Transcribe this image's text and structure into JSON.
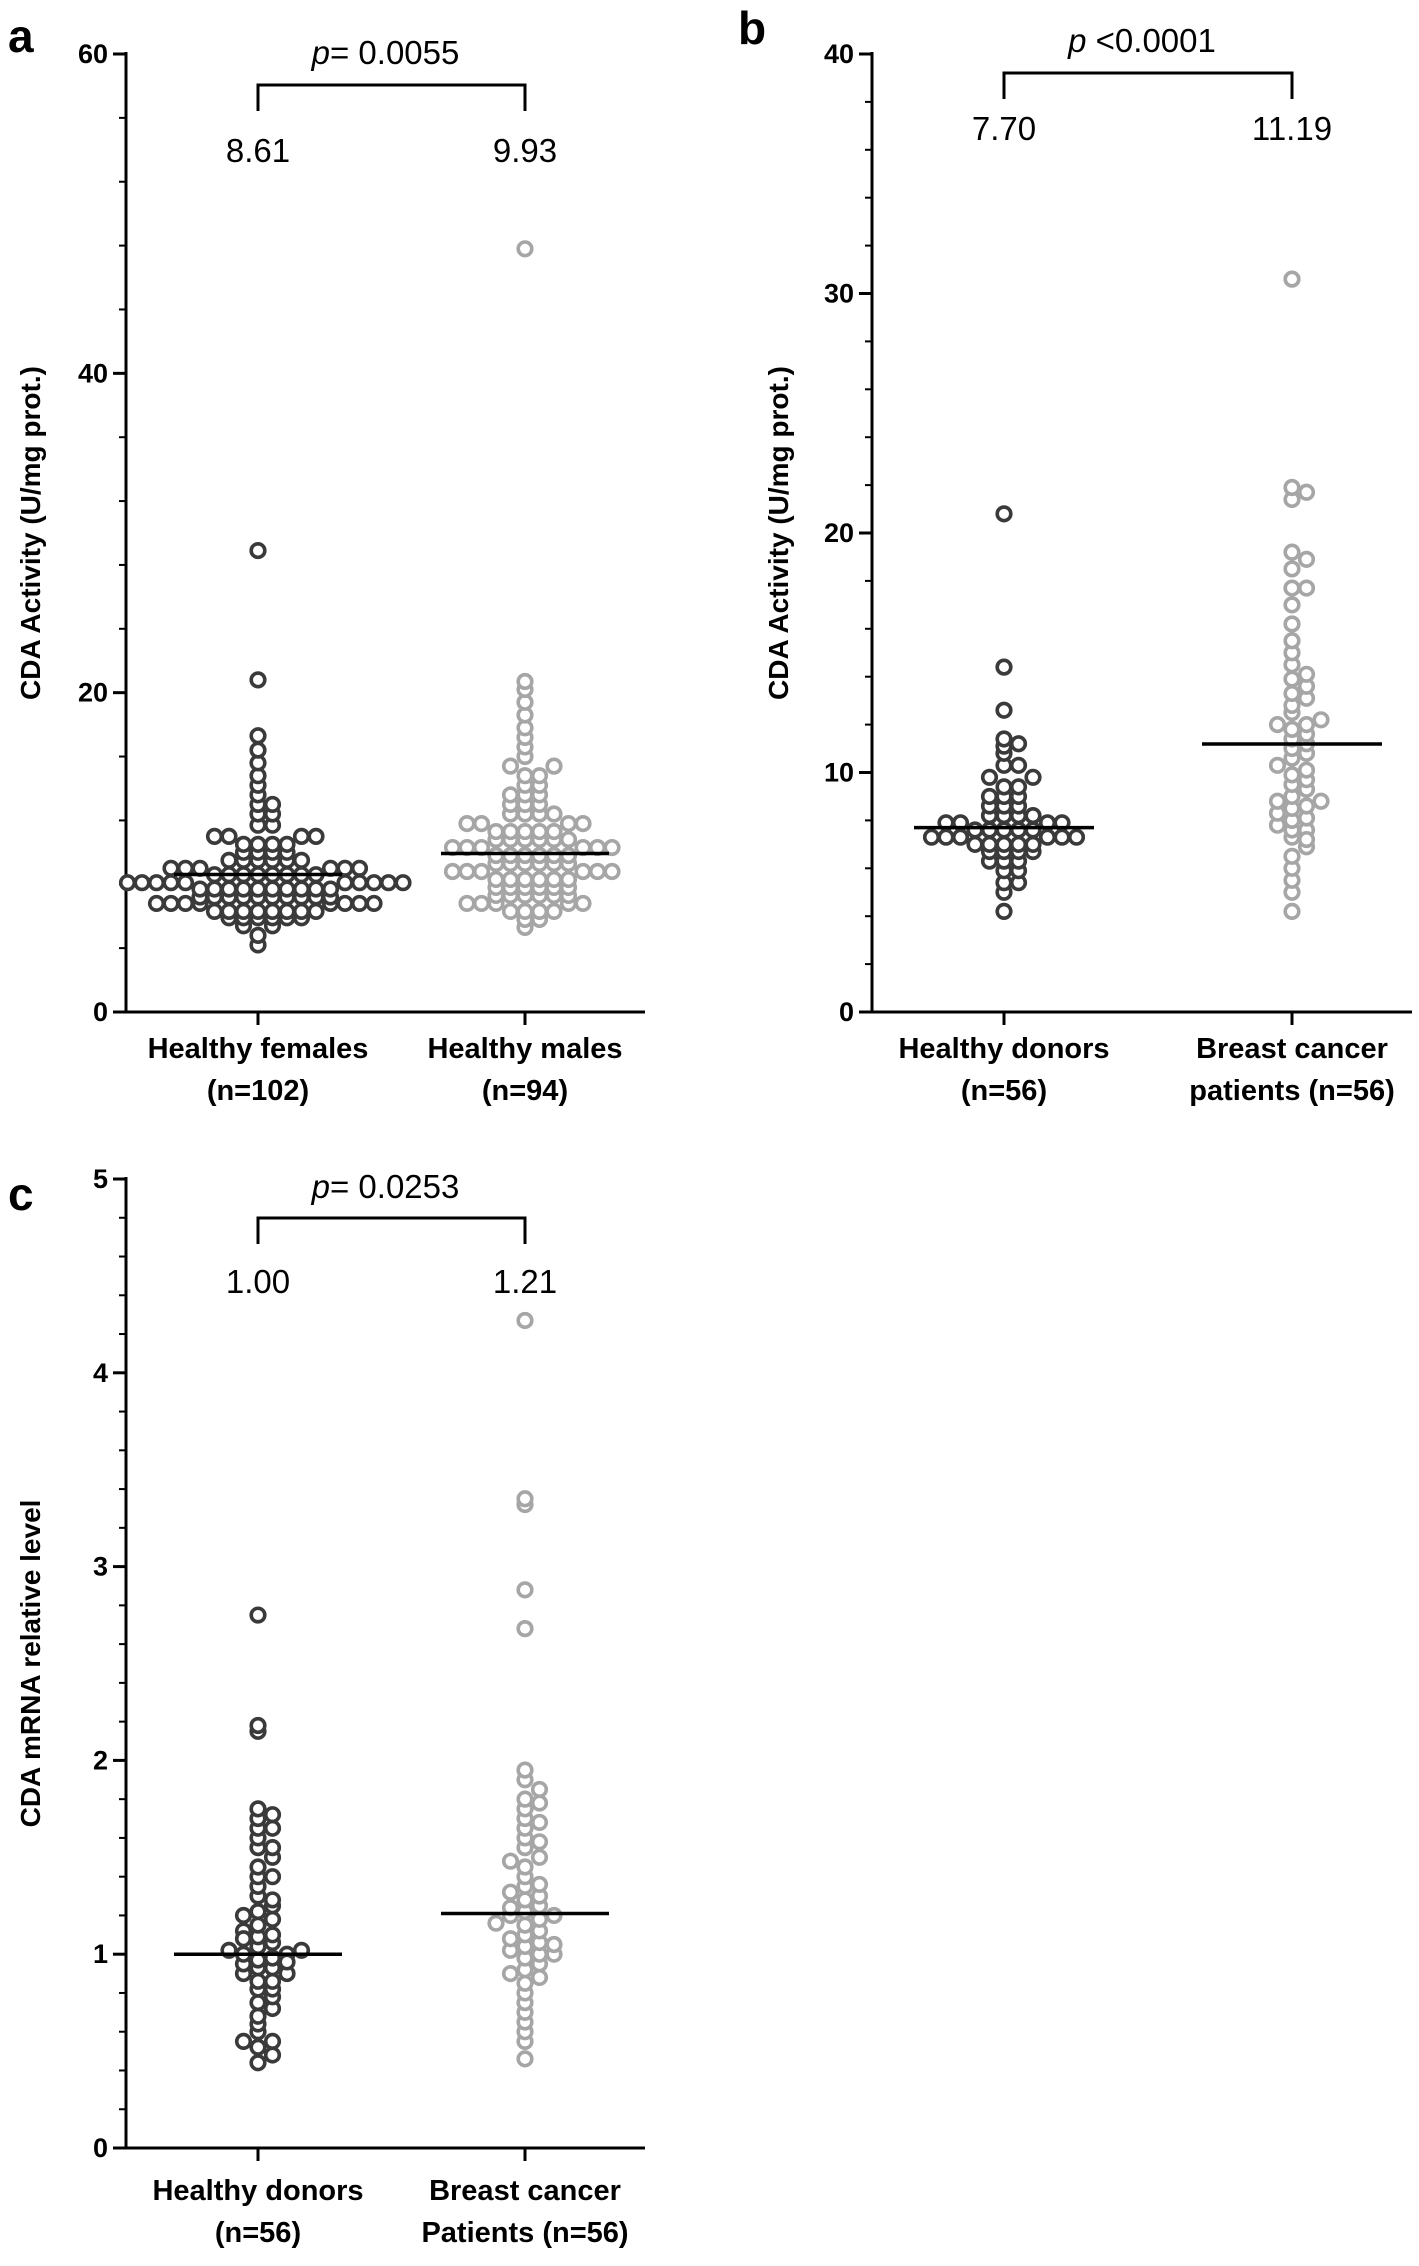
{
  "chart_data": [
    {
      "type": "scatter",
      "panel": "a",
      "ylabel": "CDA Activity (U/mg prot.)",
      "ylim": [
        0,
        60
      ],
      "yticks": [
        0,
        20,
        40,
        60
      ],
      "categories": [
        "Healthy females",
        "Healthy males"
      ],
      "category_n": [
        "(n=102)",
        "(n=94)"
      ],
      "median_labels": [
        "8.61",
        "9.93"
      ],
      "medians": [
        8.61,
        9.93
      ],
      "p_prefix": "p",
      "p_text": "= 0.0055",
      "colors": [
        "#3a3a3a",
        "#a6a6a6"
      ],
      "series": [
        {
          "name": "Healthy females",
          "values": [
            4.2,
            4.8,
            5.4,
            5.4,
            5.9,
            5.9,
            5.9,
            5.9,
            5.9,
            5.9,
            6.3,
            6.3,
            6.3,
            6.3,
            6.3,
            6.3,
            6.3,
            6.3,
            6.8,
            6.8,
            6.8,
            6.8,
            6.8,
            6.8,
            6.8,
            6.8,
            7.2,
            7.2,
            7.2,
            7.2,
            7.2,
            7.2,
            7.2,
            7.2,
            7.2,
            7.2,
            7.7,
            7.7,
            7.7,
            7.7,
            7.7,
            7.7,
            7.7,
            7.7,
            7.7,
            7.7,
            8.1,
            8.1,
            8.1,
            8.1,
            8.1,
            8.1,
            8.1,
            8.1,
            8.1,
            8.1,
            8.6,
            8.6,
            8.6,
            8.6,
            8.6,
            8.6,
            8.6,
            8.6,
            9.0,
            9.0,
            9.0,
            9.0,
            9.0,
            9.0,
            9.5,
            9.5,
            9.5,
            9.5,
            9.5,
            9.5,
            10.0,
            10.0,
            10.0,
            10.0,
            10.5,
            10.5,
            10.5,
            10.5,
            11.0,
            11.0,
            11.0,
            11.0,
            11.7,
            11.7,
            12.4,
            12.4,
            13.0,
            13.0,
            13.6,
            14.2,
            14.8,
            15.6,
            16.4,
            17.3,
            20.8,
            28.9
          ]
        },
        {
          "name": "Healthy males",
          "values": [
            5.3,
            5.8,
            5.8,
            6.3,
            6.3,
            6.3,
            6.3,
            6.8,
            6.8,
            6.8,
            6.8,
            6.8,
            7.3,
            7.3,
            7.3,
            7.3,
            7.3,
            7.3,
            7.8,
            7.8,
            7.8,
            7.8,
            7.8,
            7.8,
            8.3,
            8.3,
            8.3,
            8.3,
            8.3,
            8.3,
            8.8,
            8.8,
            8.8,
            8.8,
            8.8,
            8.8,
            9.3,
            9.3,
            9.3,
            9.3,
            9.3,
            9.3,
            9.8,
            9.8,
            9.8,
            9.8,
            9.8,
            9.8,
            10.3,
            10.3,
            10.3,
            10.3,
            10.3,
            10.3,
            10.8,
            10.8,
            10.8,
            10.8,
            10.8,
            10.8,
            11.3,
            11.3,
            11.3,
            11.3,
            11.3,
            11.8,
            11.8,
            11.8,
            11.8,
            12.4,
            12.4,
            12.4,
            12.4,
            13.0,
            13.0,
            13.0,
            13.6,
            13.6,
            13.6,
            14.2,
            14.2,
            14.8,
            14.8,
            15.4,
            15.4,
            16.0,
            16.6,
            17.2,
            17.8,
            18.6,
            19.4,
            20.2,
            20.7,
            47.8
          ]
        }
      ]
    },
    {
      "type": "scatter",
      "panel": "b",
      "ylabel": "CDA Activity (U/mg prot.)",
      "ylim": [
        0,
        40
      ],
      "yticks": [
        0,
        10,
        20,
        30,
        40
      ],
      "categories": [
        "Healthy donors",
        "Breast cancer"
      ],
      "category_n": [
        "(n=56)",
        "patients (n=56)"
      ],
      "median_labels": [
        "7.70",
        "11.19"
      ],
      "medians": [
        7.7,
        11.19
      ],
      "p_prefix": "p",
      "p_text": " <0.0001",
      "colors": [
        "#3a3a3a",
        "#a6a6a6"
      ],
      "series": [
        {
          "name": "Healthy donors",
          "values": [
            4.2,
            5.0,
            5.4,
            5.4,
            5.9,
            5.9,
            6.3,
            6.3,
            6.3,
            6.7,
            6.7,
            6.7,
            6.7,
            7.0,
            7.0,
            7.0,
            7.0,
            7.0,
            7.3,
            7.3,
            7.3,
            7.3,
            7.3,
            7.3,
            7.6,
            7.6,
            7.6,
            7.6,
            7.6,
            7.9,
            7.9,
            7.9,
            7.9,
            8.2,
            8.2,
            8.2,
            8.2,
            8.6,
            8.6,
            8.6,
            9.0,
            9.0,
            9.0,
            9.4,
            9.4,
            9.8,
            9.8,
            10.3,
            10.3,
            10.8,
            11.1,
            11.2,
            11.4,
            12.6,
            14.4,
            20.8
          ]
        },
        {
          "name": "Breast cancer patients",
          "values": [
            4.2,
            5.0,
            5.5,
            6.0,
            6.5,
            6.9,
            7.3,
            7.6,
            7.6,
            7.8,
            8.0,
            8.1,
            8.3,
            8.5,
            8.6,
            8.8,
            8.8,
            9.0,
            9.3,
            9.5,
            9.7,
            9.9,
            10.1,
            10.3,
            10.6,
            10.8,
            11.0,
            11.2,
            11.4,
            11.6,
            11.8,
            12.0,
            12.0,
            12.2,
            12.5,
            12.8,
            13.1,
            13.3,
            13.6,
            13.9,
            14.1,
            14.5,
            15.0,
            15.5,
            16.2,
            17.0,
            17.7,
            17.7,
            18.5,
            18.9,
            19.2,
            21.4,
            21.7,
            21.9,
            30.6,
            7.2
          ]
        }
      ]
    },
    {
      "type": "scatter",
      "panel": "c",
      "ylabel": "CDA mRNA relative level",
      "ylim": [
        0,
        5
      ],
      "yticks": [
        0,
        1,
        2,
        3,
        4,
        5
      ],
      "categories": [
        "Healthy donors",
        "Breast cancer"
      ],
      "category_n": [
        "(n=56)",
        "Patients (n=56)"
      ],
      "median_labels": [
        "1.00",
        "1.21"
      ],
      "medians": [
        1.0,
        1.21
      ],
      "p_prefix": "p",
      "p_text": "= 0.0253",
      "colors": [
        "#3a3a3a",
        "#a6a6a6"
      ],
      "series": [
        {
          "name": "Healthy donors",
          "values": [
            0.44,
            0.48,
            0.52,
            0.55,
            0.55,
            0.6,
            0.64,
            0.68,
            0.72,
            0.75,
            0.78,
            0.82,
            0.82,
            0.86,
            0.86,
            0.9,
            0.9,
            0.93,
            0.93,
            0.95,
            0.97,
            0.98,
            1.0,
            1.0,
            1.02,
            1.02,
            1.04,
            1.06,
            1.09,
            1.1,
            1.12,
            1.15,
            1.18,
            1.2,
            1.22,
            1.25,
            1.3,
            1.35,
            1.4,
            1.4,
            1.45,
            1.5,
            1.55,
            1.55,
            1.6,
            1.65,
            1.65,
            1.7,
            1.72,
            1.75,
            2.15,
            2.18,
            2.75,
            0.96,
            1.08,
            1.28
          ]
        },
        {
          "name": "Breast cancer patients",
          "values": [
            0.46,
            0.55,
            0.6,
            0.65,
            0.7,
            0.75,
            0.8,
            0.85,
            0.88,
            0.92,
            0.95,
            0.98,
            1.0,
            1.02,
            1.04,
            1.06,
            1.08,
            1.1,
            1.12,
            1.15,
            1.18,
            1.2,
            1.2,
            1.22,
            1.25,
            1.28,
            1.3,
            1.32,
            1.35,
            1.4,
            1.45,
            1.5,
            1.55,
            1.6,
            1.65,
            1.7,
            1.75,
            1.8,
            1.85,
            1.9,
            1.95,
            2.68,
            2.88,
            3.32,
            3.35,
            4.27,
            0.9,
            1.0,
            1.05,
            1.16,
            1.24,
            1.36,
            1.48,
            1.58,
            1.68,
            1.78
          ]
        }
      ]
    }
  ]
}
